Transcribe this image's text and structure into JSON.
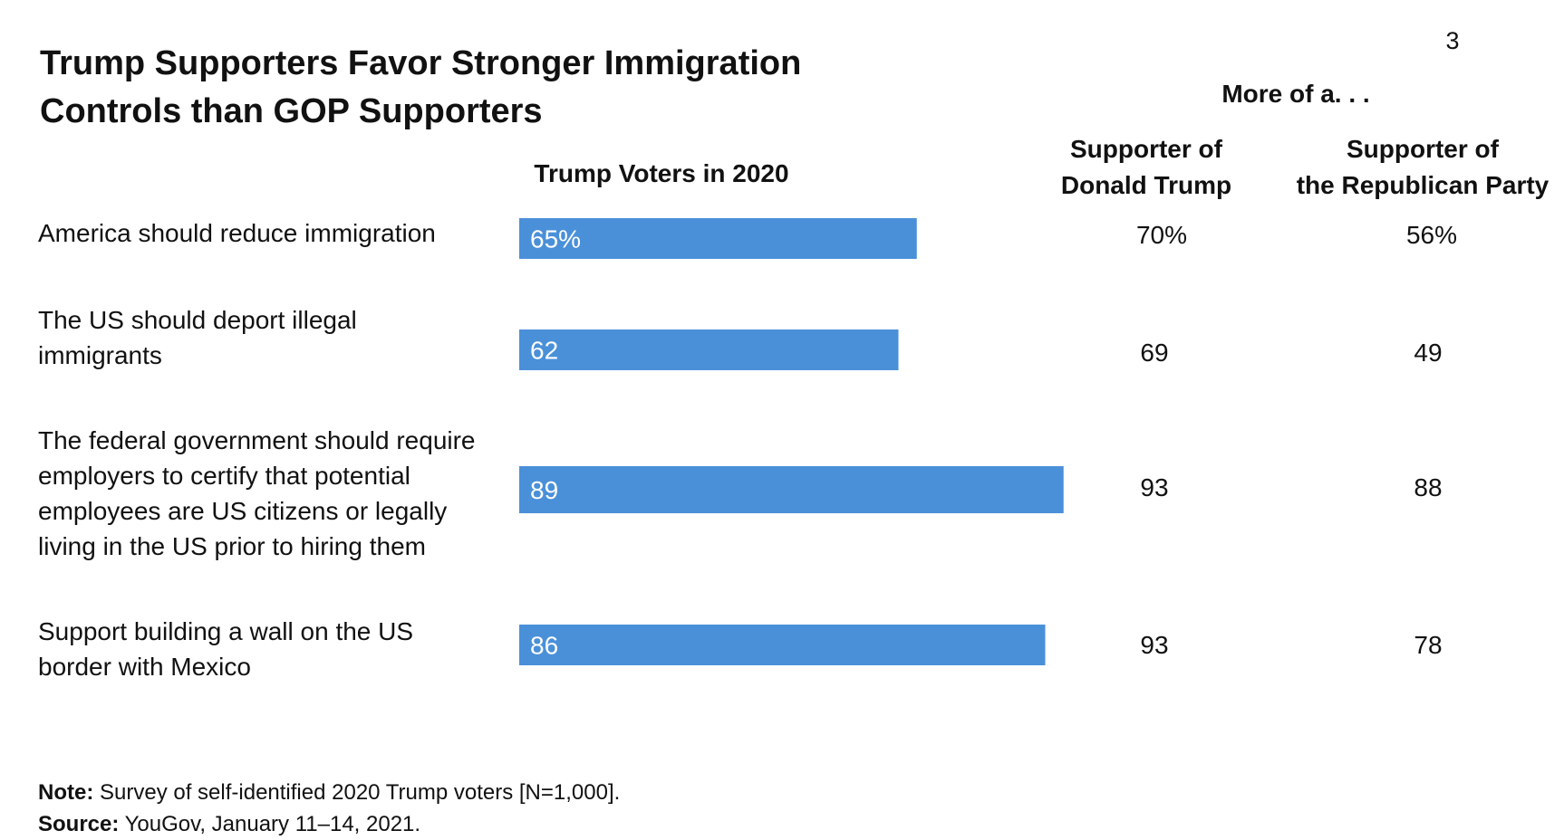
{
  "page_number": "3",
  "title_line1": "Trump Supporters Favor Stronger Immigration",
  "title_line2": "Controls than GOP Supporters",
  "header": {
    "bar_column": "Trump Voters in 2020",
    "more_of": "More of a. . .",
    "col1_line1": "Supporter of",
    "col1_line2": "Donald Trump",
    "col2_line1": "Supporter of",
    "col2_line2": "the Republican Party"
  },
  "rows": [
    {
      "label_lines": [
        "America should reduce immigration"
      ],
      "trump_supporter": "70%",
      "gop_supporter": "56%"
    },
    {
      "label_lines": [
        "The US should deport illegal",
        "immigrants"
      ],
      "trump_supporter": "69",
      "gop_supporter": "49"
    },
    {
      "label_lines": [
        "The federal government should require",
        "employers to certify that potential",
        "employees are US citizens or legally",
        "living in the US prior to hiring them"
      ],
      "trump_supporter": "93",
      "gop_supporter": "88"
    },
    {
      "label_lines": [
        "Support building a wall on the US",
        "border with Mexico"
      ],
      "trump_supporter": "93",
      "gop_supporter": "78"
    }
  ],
  "chart_data": {
    "type": "bar",
    "orientation": "horizontal",
    "title": "Trump Supporters Favor Stronger Immigration Controls than GOP Supporters",
    "series": [
      {
        "name": "Trump Voters in 2020",
        "values": [
          65,
          62,
          89,
          86
        ],
        "value_labels": [
          "65%",
          "62",
          "89",
          "86"
        ]
      }
    ],
    "categories": [
      "America should reduce immigration",
      "The US should deport illegal immigrants",
      "The federal government should require employers to certify that potential employees are US citizens or legally living in the US prior to hiring them",
      "Support building a wall on the US border with Mexico"
    ],
    "xlim": [
      0,
      100
    ],
    "grid": false,
    "bar_color": "#4a90d9",
    "label_color": "#ffffff"
  },
  "note": {
    "label": "Note:",
    "text": " Survey of self-identified 2020 Trump voters [N=1,000]."
  },
  "source": {
    "label": "Source:",
    "text": " YouGov, January 11–14, 2021."
  }
}
